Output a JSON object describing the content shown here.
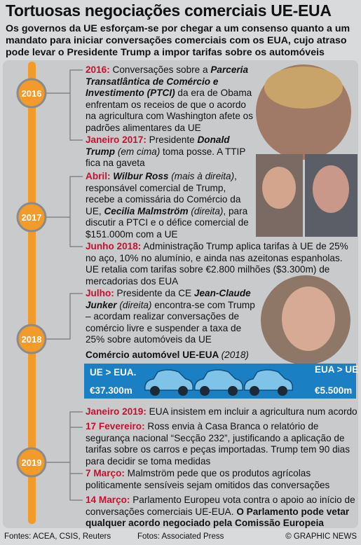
{
  "header": {
    "title": "Tortuosas negociações comerciais UE-EUA",
    "subtitle": "Os governos da UE esforçam-se por chegar a um consenso quanto a um mandato para iniciar conversações comerciais com os EUA, cujo atraso pode levar o Presidente Trump a impor tarifas sobre os automóveis"
  },
  "timeline": {
    "years": [
      "2016",
      "2017",
      "2018",
      "2019"
    ],
    "entries": [
      [
        {
          "style": "date",
          "text": "2016:"
        },
        {
          "style": "plain",
          "text": " Conversações sobre a "
        },
        {
          "style": "bolditalic",
          "text": "Parceria Transatlântica de Comércio e Investimento (PTCI)"
        },
        {
          "style": "plain",
          "text": " da era de Obama enfrentam os receios de que o acordo na agricultura com Washington afete os padrões alimentares da UE"
        }
      ],
      [
        {
          "style": "date",
          "text": "Janeiro 2017:"
        },
        {
          "style": "plain",
          "text": " Presidente "
        },
        {
          "style": "bolditalic",
          "text": "Donald Trump"
        },
        {
          "style": "italic",
          "text": " (em cima)"
        },
        {
          "style": "plain",
          "text": " toma posse. A TTIP fica na gaveta"
        }
      ],
      [
        {
          "style": "date",
          "text": "Abril:"
        },
        {
          "style": "plain",
          "text": " "
        },
        {
          "style": "bolditalic",
          "text": "Wilbur Ross"
        },
        {
          "style": "italic",
          "text": " (mais à direita)"
        },
        {
          "style": "plain",
          "text": ", responsável comercial de Trump, recebe a comissária do Comércio da UE, "
        },
        {
          "style": "bolditalic",
          "text": "Cecilia Malmström"
        },
        {
          "style": "italic",
          "text": " (direita)"
        },
        {
          "style": "plain",
          "text": ", para discutir a PTCI e o défice comercial de $151.000m com a UE"
        }
      ],
      [
        {
          "style": "date",
          "text": "Junho 2018:"
        },
        {
          "style": "plain",
          "text": " Administração Trump aplica tarifas à UE de 25% no aço, 10% no alumínio, e ainda nas azeitonas espanholas. UE retalia com tarifas sobre €2.800 milhões ($3.300m) de mercadorias dos EUA"
        }
      ],
      [
        {
          "style": "date",
          "text": "Julho:"
        },
        {
          "style": "plain",
          "text": " Presidente da CE "
        },
        {
          "style": "bolditalic",
          "text": "Jean-Claude Junker"
        },
        {
          "style": "italic",
          "text": " (direita)"
        },
        {
          "style": "plain",
          "text": " encontra-se com Trump – acordam realizar conversações de comércio livre e suspender a taxa de 25% sobre automóveis da UE"
        }
      ],
      [
        {
          "style": "date",
          "text": "Janeiro 2019:"
        },
        {
          "style": "plain",
          "text": " EUA insistem em incluir a agricultura num acordo"
        }
      ],
      [
        {
          "style": "date",
          "text": "17 Fevereiro:"
        },
        {
          "style": "plain",
          "text": " Ross envia à Casa Branca o relatório de segurança nacional “Secção 232”, justificando a aplicação de tarifas sobre os carros e peças importadas. Trump tem 90 dias para decidir se toma medidas"
        }
      ],
      [
        {
          "style": "date",
          "text": "7 Março:"
        },
        {
          "style": "plain",
          "text": " Malmström pede que os produtos agrícolas politicamente sensíveis sejam omitidos das conversações"
        }
      ],
      [
        {
          "style": "date",
          "text": "14 Março:"
        },
        {
          "style": "plain",
          "text": " Parlamento Europeu vota contra o apoio ao início de conversações comerciais UE-EUA. "
        },
        {
          "style": "bold",
          "text": "O Parlamento pode vetar qualquer acordo negociado pela Comissão Europeia"
        }
      ]
    ]
  },
  "car_trade": {
    "title": "Comércio automóvel UE-EUA",
    "year": "(2018)",
    "left_label": "UE > EUA.",
    "left_value": "€37.300m",
    "right_label": "EUA > UE",
    "right_value": "€5.500m"
  },
  "footer": {
    "sources": "Fontes: ACEA, CSIS, Reuters",
    "photos": "Fotos: Associated Press",
    "credit": "© GRAPHIC NEWS"
  }
}
